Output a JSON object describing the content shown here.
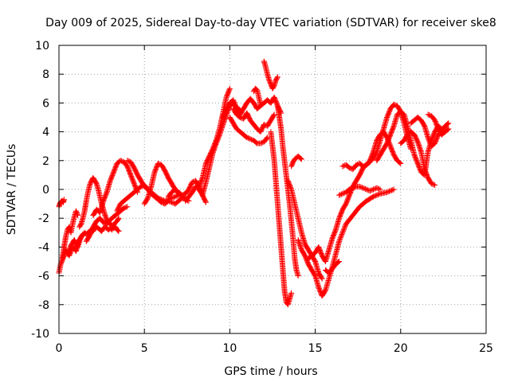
{
  "chart_data": {
    "type": "scatter",
    "title": "Day 009 of 2025, Sidereal Day-to-day VTEC variation (SDTVAR) for receiver ske8",
    "xlabel": "GPS time / hours",
    "ylabel": "SDTVAR / TECUs",
    "xlim": [
      0,
      25
    ],
    "ylim": [
      -10,
      10
    ],
    "xticks": [
      0,
      5,
      10,
      15,
      20,
      25
    ],
    "yticks": [
      -10,
      -8,
      -6,
      -4,
      -2,
      0,
      2,
      4,
      6,
      8,
      10
    ],
    "grid": true,
    "marker": "+",
    "color": "#ff0000",
    "series": [
      {
        "name": "trace-1",
        "x": [
          0.0,
          0.05,
          0.1,
          0.15,
          0.2,
          0.25,
          0.3
        ],
        "y": [
          -1.2,
          -1.0,
          -0.9,
          -0.8,
          -0.8,
          -0.9,
          -0.7
        ]
      },
      {
        "name": "trace-2",
        "x": [
          0.0,
          0.1,
          0.2,
          0.3,
          0.4,
          0.5,
          0.6,
          0.7,
          0.8,
          0.9,
          1.0,
          1.1,
          1.2,
          1.3,
          1.4,
          1.5,
          1.6,
          1.7,
          1.8,
          1.9,
          2.0,
          2.1,
          2.2,
          2.3,
          2.4,
          2.5,
          2.6,
          2.7,
          2.8,
          2.9,
          3.0,
          3.1,
          3.2,
          3.3,
          3.4,
          3.5
        ],
        "y": [
          -5.8,
          -5.2,
          -4.9,
          -4.6,
          -4.2,
          -4.4,
          -4.6,
          -4.3,
          -4.0,
          -4.1,
          -4.3,
          -3.8,
          -3.5,
          -3.3,
          -3.2,
          -3.0,
          -3.1,
          -3.0,
          -2.9,
          -2.8,
          -2.9,
          -2.7,
          -2.6,
          -2.7,
          -2.8,
          -2.9,
          -2.7,
          -2.6,
          -2.7,
          -2.8,
          -2.7,
          -2.8,
          -2.5,
          -2.3,
          -2.2,
          -2.0
        ]
      },
      {
        "name": "trace-3",
        "x": [
          0.2,
          0.3,
          0.4,
          0.5,
          0.6,
          0.7,
          0.8,
          0.9,
          1.0,
          1.1
        ],
        "y": [
          -4.8,
          -4.0,
          -3.3,
          -2.8,
          -2.6,
          -3.0,
          -2.4,
          -1.9,
          -1.5,
          -1.8
        ]
      },
      {
        "name": "trace-4",
        "x": [
          0.5,
          0.6,
          0.7,
          0.8,
          0.9,
          1.0,
          1.1,
          1.2,
          1.3,
          1.4
        ],
        "y": [
          -4.5,
          -4.2,
          -3.9,
          -3.7,
          -3.5,
          -3.8,
          -4.0,
          -3.6,
          -3.3,
          -3.1
        ]
      },
      {
        "name": "trace-5",
        "x": [
          1.2,
          1.3,
          1.4,
          1.5,
          1.6,
          1.7,
          1.8,
          1.9,
          2.0,
          2.1,
          2.2,
          2.3,
          2.4,
          2.5,
          2.6,
          2.7,
          2.8,
          2.9,
          3.0,
          3.1,
          3.2,
          3.3,
          3.4,
          3.5
        ],
        "y": [
          -2.6,
          -2.4,
          -2.0,
          -1.5,
          -0.8,
          -0.2,
          0.3,
          0.6,
          0.8,
          0.6,
          0.4,
          0.0,
          -0.5,
          -1.0,
          -1.4,
          -1.8,
          -2.1,
          -2.3,
          -2.4,
          -2.5,
          -2.7,
          -2.6,
          -2.8,
          -2.9
        ]
      },
      {
        "name": "trace-6",
        "x": [
          1.6,
          1.8,
          2.0,
          2.2,
          2.4,
          2.6,
          2.8,
          3.0,
          3.2,
          3.4,
          3.6,
          3.8,
          4.0
        ],
        "y": [
          -3.6,
          -3.2,
          -2.6,
          -2.2,
          -2.0,
          -2.3,
          -2.4,
          -2.1,
          -1.9,
          -1.7,
          -1.5,
          -1.3,
          -1.2
        ]
      },
      {
        "name": "trace-7",
        "x": [
          2.0,
          2.2,
          2.4,
          2.6,
          2.8,
          3.0,
          3.2,
          3.4,
          3.6,
          3.8,
          4.0,
          4.2,
          4.4,
          4.6
        ],
        "y": [
          -1.8,
          -1.4,
          -1.6,
          -0.8,
          -0.2,
          0.6,
          1.2,
          1.8,
          2.0,
          1.9,
          1.6,
          1.0,
          0.4,
          -0.2
        ]
      },
      {
        "name": "trace-8",
        "x": [
          3.4,
          3.6,
          3.8,
          4.0,
          4.2,
          4.4,
          4.6,
          4.8,
          5.0,
          5.2,
          5.4,
          5.6,
          5.8,
          6.0,
          6.2,
          6.4,
          6.6,
          6.8,
          7.0
        ],
        "y": [
          -1.5,
          -1.0,
          -0.8,
          -0.6,
          -0.4,
          -0.2,
          0.0,
          0.2,
          0.3,
          0.0,
          -0.2,
          -0.4,
          -0.6,
          -0.7,
          -0.8,
          -0.7,
          -0.6,
          -0.5,
          -0.4
        ]
      },
      {
        "name": "trace-9",
        "x": [
          4.0,
          4.2,
          4.4,
          4.6,
          4.8,
          5.0,
          5.2,
          5.4,
          5.6,
          5.8,
          6.0,
          6.2,
          6.4,
          6.6,
          6.8,
          7.0,
          7.2,
          7.4
        ],
        "y": [
          2.0,
          1.9,
          1.5,
          1.0,
          0.6,
          0.2,
          0.0,
          -0.3,
          -0.5,
          -0.7,
          -0.9,
          -1.0,
          -0.8,
          -0.9,
          -1.0,
          -0.8,
          -0.6,
          -0.5
        ]
      },
      {
        "name": "trace-10",
        "x": [
          5.0,
          5.2,
          5.4,
          5.6,
          5.8,
          6.0,
          6.2,
          6.4,
          6.6,
          6.8,
          7.0,
          7.2,
          7.4,
          7.6
        ],
        "y": [
          -1.0,
          -0.6,
          0.2,
          1.2,
          1.8,
          1.7,
          1.3,
          0.8,
          0.4,
          0.0,
          -0.3,
          -0.5,
          -0.7,
          -0.8
        ]
      },
      {
        "name": "trace-11",
        "x": [
          6.4,
          6.6,
          6.8,
          7.0,
          7.2,
          7.4,
          7.6,
          7.8,
          8.0,
          8.2,
          8.4,
          8.6
        ],
        "y": [
          -0.5,
          -0.2,
          0.0,
          -0.2,
          -0.4,
          -0.3,
          0.0,
          0.5,
          0.6,
          0.2,
          -0.4,
          -0.9
        ]
      },
      {
        "name": "trace-12",
        "x": [
          7.4,
          7.6,
          7.8,
          8.0,
          8.2,
          8.4,
          8.6,
          8.8,
          9.0,
          9.2,
          9.4,
          9.6,
          9.8,
          10.0,
          10.2,
          10.4,
          10.6
        ],
        "y": [
          -0.8,
          -0.5,
          -0.2,
          0.2,
          0.0,
          -0.4,
          0.5,
          1.5,
          2.5,
          3.2,
          3.8,
          4.5,
          5.2,
          5.8,
          6.0,
          5.7,
          5.5
        ]
      },
      {
        "name": "trace-13",
        "x": [
          8.2,
          8.4,
          8.6,
          8.8,
          9.0,
          9.2,
          9.4,
          9.6,
          9.8,
          10.0
        ],
        "y": [
          0.2,
          0.8,
          1.8,
          2.3,
          2.8,
          3.4,
          4.2,
          5.3,
          6.4,
          7.0
        ]
      },
      {
        "name": "trace-14",
        "x": [
          9.6,
          9.8,
          10.0,
          10.2,
          10.4,
          10.6,
          10.8,
          11.0,
          11.2,
          11.4,
          11.6,
          11.8,
          12.0,
          12.2,
          12.4,
          12.6,
          12.8,
          13.0
        ],
        "y": [
          5.0,
          5.6,
          6.0,
          6.2,
          5.6,
          5.2,
          5.6,
          6.0,
          6.3,
          6.0,
          5.6,
          5.8,
          6.0,
          6.2,
          6.0,
          6.4,
          5.8,
          5.3
        ]
      },
      {
        "name": "trace-15",
        "x": [
          10.0,
          10.2,
          10.4,
          10.6,
          10.8,
          11.0,
          11.2,
          11.4,
          11.6,
          11.8,
          12.0,
          12.2
        ],
        "y": [
          5.0,
          4.6,
          4.2,
          4.0,
          3.8,
          3.6,
          3.5,
          3.4,
          3.2,
          3.2,
          3.3,
          3.6
        ]
      },
      {
        "name": "trace-16",
        "x": [
          10.2,
          10.4,
          10.6,
          10.8,
          11.0,
          11.2,
          11.4,
          11.6,
          11.8,
          12.0,
          12.2,
          12.4,
          12.6
        ],
        "y": [
          5.6,
          5.2,
          5.0,
          4.9,
          5.3,
          4.8,
          4.5,
          4.2,
          4.0,
          4.5,
          4.4,
          4.8,
          5.2
        ]
      },
      {
        "name": "trace-17",
        "x": [
          11.4,
          11.5,
          11.6,
          11.7,
          11.8
        ],
        "y": [
          6.8,
          7.0,
          6.9,
          6.4,
          5.9
        ]
      },
      {
        "name": "trace-18",
        "x": [
          12.0,
          12.1,
          12.2,
          12.3,
          12.4,
          12.5,
          12.6,
          12.7,
          12.8
        ],
        "y": [
          8.9,
          8.5,
          8.0,
          7.6,
          7.3,
          7.0,
          7.2,
          7.6,
          7.8
        ]
      },
      {
        "name": "trace-19",
        "x": [
          12.4,
          12.5,
          12.6,
          12.7,
          12.8,
          12.9,
          13.0,
          13.1,
          13.2,
          13.3,
          13.4,
          13.5,
          13.6
        ],
        "y": [
          4.0,
          3.0,
          2.0,
          0.5,
          -1.0,
          -2.5,
          -4.0,
          -5.5,
          -7.0,
          -7.8,
          -8.0,
          -7.6,
          -7.2
        ]
      },
      {
        "name": "trace-20",
        "x": [
          12.8,
          12.9,
          13.0,
          13.1,
          13.2,
          13.3,
          13.4,
          13.5,
          13.6,
          13.7,
          13.8,
          13.9,
          14.0
        ],
        "y": [
          5.8,
          5.0,
          4.2,
          3.0,
          2.0,
          1.0,
          0.0,
          -1.0,
          -2.2,
          -3.4,
          -4.8,
          -5.6,
          -6.0
        ]
      },
      {
        "name": "trace-21",
        "x": [
          13.4,
          13.6,
          13.8,
          14.0,
          14.2,
          14.4,
          14.6,
          14.8,
          15.0,
          15.2,
          15.4
        ],
        "y": [
          0.6,
          0.0,
          -1.0,
          -2.0,
          -3.0,
          -3.8,
          -4.2,
          -4.6,
          -5.0,
          -5.8,
          -6.2
        ]
      },
      {
        "name": "trace-22",
        "x": [
          13.6,
          13.7,
          13.8,
          13.9,
          14.0,
          14.1,
          14.2
        ],
        "y": [
          1.6,
          1.9,
          2.1,
          2.2,
          2.3,
          2.2,
          2.1
        ]
      },
      {
        "name": "trace-23",
        "x": [
          14.0,
          14.2,
          14.4,
          14.6,
          14.8,
          15.0,
          15.2,
          15.4,
          15.6,
          16.0,
          16.4,
          16.8,
          17.2,
          17.6,
          18.0,
          18.4,
          18.8,
          19.2,
          19.6
        ],
        "y": [
          -3.5,
          -4.2,
          -4.6,
          -5.2,
          -5.6,
          -6.0,
          -6.8,
          -7.4,
          -7.0,
          -5.4,
          -3.6,
          -2.4,
          -1.8,
          -1.2,
          -0.8,
          -0.5,
          -0.3,
          -0.2,
          0.0
        ]
      },
      {
        "name": "trace-24",
        "x": [
          14.6,
          14.8,
          15.0,
          15.2,
          15.4,
          15.6,
          15.8,
          16.0,
          16.2,
          16.4,
          16.6,
          16.8,
          17.0,
          17.2,
          17.4,
          17.6,
          17.8,
          18.0,
          18.2,
          18.4,
          18.6,
          18.8,
          19.0,
          19.2,
          19.4,
          19.6,
          19.8,
          20.0
        ],
        "y": [
          -4.8,
          -4.6,
          -4.4,
          -4.0,
          -4.6,
          -5.0,
          -4.2,
          -3.4,
          -2.8,
          -2.0,
          -1.4,
          -1.0,
          -0.4,
          0.2,
          0.6,
          1.0,
          1.5,
          1.7,
          2.0,
          2.6,
          3.4,
          3.8,
          4.0,
          3.6,
          3.0,
          2.4,
          2.0,
          1.8
        ]
      },
      {
        "name": "trace-25",
        "x": [
          15.6,
          15.8,
          16.0,
          16.2,
          16.4
        ],
        "y": [
          -5.6,
          -5.8,
          -5.5,
          -5.2,
          -5.0
        ]
      },
      {
        "name": "trace-26",
        "x": [
          16.4,
          16.6,
          16.8,
          17.0,
          17.2,
          17.4,
          17.6,
          17.8,
          18.0,
          18.2,
          18.4,
          18.6,
          18.8
        ],
        "y": [
          -0.4,
          -0.3,
          -0.2,
          0.0,
          0.1,
          0.2,
          0.2,
          0.1,
          0.0,
          -0.1,
          0.0,
          0.1,
          0.0
        ]
      },
      {
        "name": "trace-27",
        "x": [
          16.6,
          16.8,
          17.0,
          17.2,
          17.4,
          17.6,
          17.8,
          18.0,
          18.2,
          18.4,
          18.6,
          18.8,
          19.0,
          19.2,
          19.4,
          19.6,
          19.8,
          20.0,
          20.2,
          20.4,
          20.6
        ],
        "y": [
          1.6,
          1.7,
          1.5,
          1.4,
          1.7,
          1.8,
          1.6,
          1.7,
          1.9,
          2.2,
          2.6,
          3.4,
          4.2,
          5.0,
          5.6,
          5.9,
          5.8,
          5.4,
          4.6,
          3.6,
          2.8
        ]
      },
      {
        "name": "trace-28",
        "x": [
          18.6,
          18.8,
          19.0,
          19.2,
          19.4,
          19.6,
          19.8,
          20.0,
          20.2,
          20.4,
          20.6,
          20.8,
          21.0,
          21.2,
          21.4,
          21.6,
          21.8,
          22.0,
          22.2,
          22.4,
          22.6,
          22.8
        ],
        "y": [
          2.0,
          2.4,
          2.8,
          3.2,
          3.8,
          4.4,
          5.2,
          5.4,
          5.2,
          4.4,
          3.4,
          2.4,
          1.8,
          1.2,
          1.0,
          2.6,
          3.4,
          4.0,
          4.4,
          4.2,
          4.0,
          4.2
        ]
      },
      {
        "name": "trace-29",
        "x": [
          20.0,
          20.2,
          20.4,
          20.6,
          20.8,
          21.0,
          21.2,
          21.4,
          21.6,
          21.8,
          22.0
        ],
        "y": [
          3.2,
          3.4,
          3.8,
          4.0,
          3.8,
          3.3,
          2.6,
          1.4,
          0.8,
          0.4,
          0.3
        ]
      },
      {
        "name": "trace-30",
        "x": [
          20.6,
          20.8,
          21.0,
          21.2,
          21.4,
          21.6,
          21.8,
          22.0,
          22.2,
          22.4,
          22.6,
          22.8
        ],
        "y": [
          4.6,
          4.8,
          5.0,
          4.8,
          4.4,
          3.6,
          3.0,
          3.2,
          3.8,
          4.0,
          4.4,
          4.6
        ]
      },
      {
        "name": "trace-31",
        "x": [
          21.6,
          21.8,
          22.0,
          22.2,
          22.4,
          22.6,
          22.8
        ],
        "y": [
          5.2,
          5.1,
          4.8,
          4.2,
          3.8,
          4.0,
          4.2
        ]
      }
    ]
  }
}
